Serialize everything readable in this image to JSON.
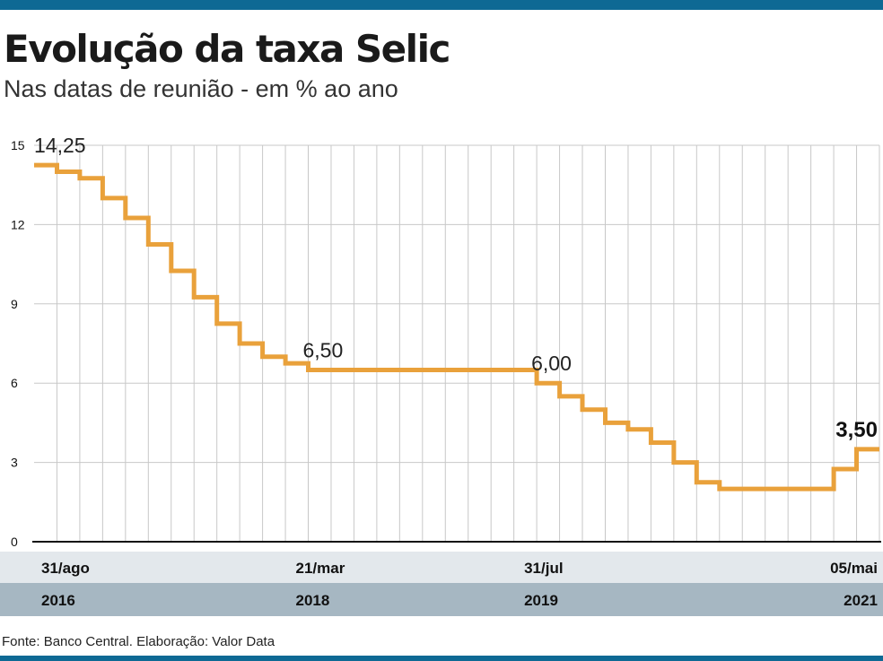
{
  "header": {
    "title": "Evolução da taxa Selic",
    "subtitle": "Nas datas de reunião - em % ao ano"
  },
  "footer": {
    "source": "Fonte: Banco Central. Elaboração: Valor Data"
  },
  "colors": {
    "line": "#e9a13b",
    "rule": "#0e6994",
    "date_band": "#e3e8ec",
    "year_band": "#a6b7c2",
    "grid": "#c8c8c8"
  },
  "chart_data": {
    "type": "line",
    "step": true,
    "title": "Evolução da taxa Selic",
    "subtitle": "Nas datas de reunião - em % ao ano",
    "xlabel": "",
    "ylabel": "",
    "ylim": [
      0,
      15
    ],
    "yticks": [
      0,
      3,
      6,
      9,
      12,
      15
    ],
    "grid": true,
    "meeting_count": 37,
    "series": [
      {
        "values": [
          14.25,
          14.0,
          13.75,
          13.0,
          12.25,
          11.25,
          10.25,
          9.25,
          8.25,
          7.5,
          7.0,
          6.75,
          6.5,
          6.5,
          6.5,
          6.5,
          6.5,
          6.5,
          6.5,
          6.5,
          6.5,
          6.5,
          6.0,
          5.5,
          5.0,
          4.5,
          4.25,
          3.75,
          3.0,
          2.25,
          2.0,
          2.0,
          2.0,
          2.0,
          2.0,
          2.75,
          3.5
        ]
      }
    ],
    "x_labels": [
      {
        "index": 0,
        "date": "31/ago",
        "year": "2016"
      },
      {
        "index": 12,
        "date": "21/mar",
        "year": "2018"
      },
      {
        "index": 22,
        "date": "31/jul",
        "year": "2019"
      },
      {
        "index": 36,
        "date": "05/mai",
        "year": "2021"
      }
    ],
    "annotations": [
      {
        "index": 0,
        "text": "14,25",
        "bold": false
      },
      {
        "index": 12,
        "text": "6,50",
        "bold": false
      },
      {
        "index": 22,
        "text": "6,00",
        "bold": false
      },
      {
        "index": 36,
        "text": "3,50",
        "bold": true
      }
    ]
  }
}
